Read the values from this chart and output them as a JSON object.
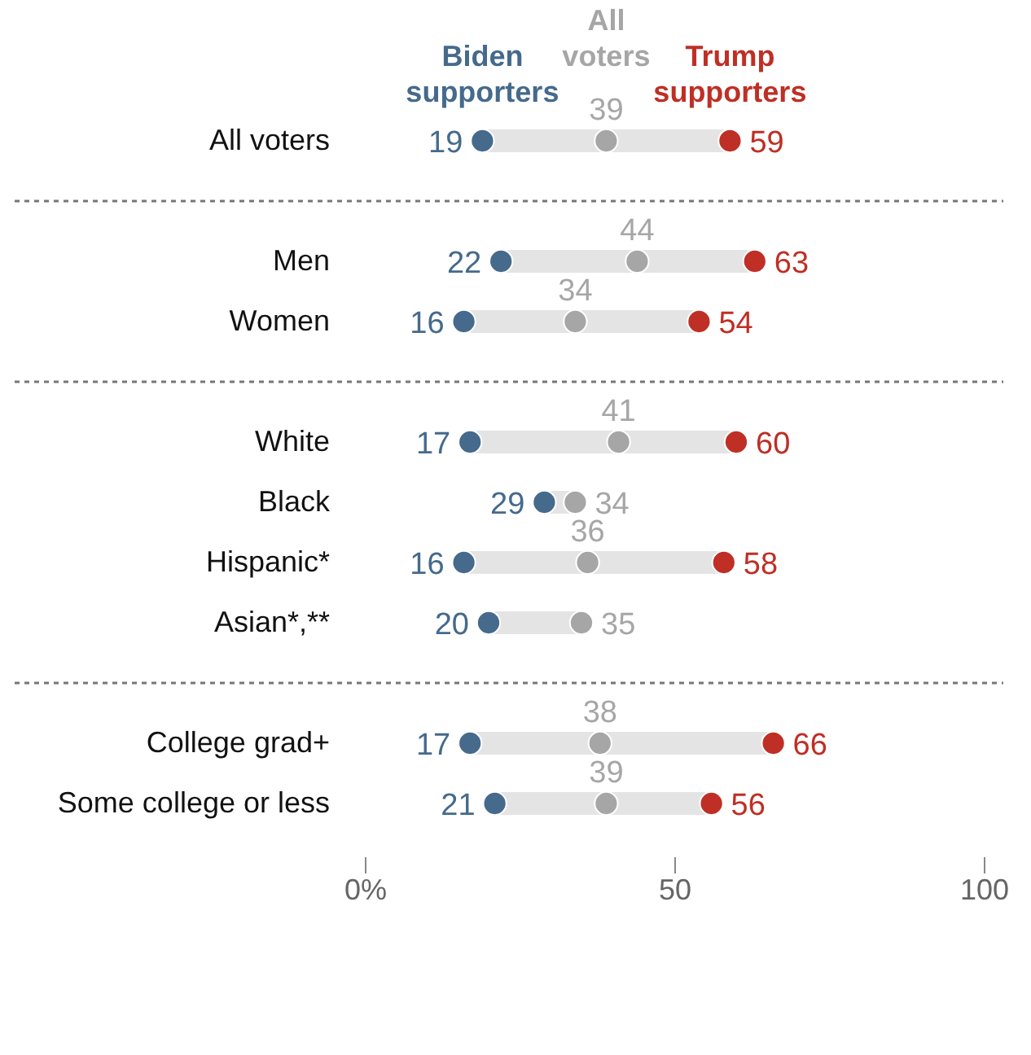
{
  "chart_data": {
    "type": "scatter",
    "categories": [
      "All voters",
      null,
      "Men",
      "Women",
      null,
      "White",
      "Black",
      "Hispanic*",
      "Asian*,**",
      null,
      "College grad+",
      "Some college or less"
    ],
    "series": [
      {
        "name": "Biden supporters",
        "color": "#456a8c",
        "values": [
          19,
          null,
          22,
          16,
          null,
          17,
          29,
          16,
          20,
          null,
          17,
          21
        ]
      },
      {
        "name": "All voters",
        "color": "#a6a6a6",
        "values": [
          39,
          null,
          44,
          34,
          null,
          41,
          34,
          36,
          35,
          null,
          38,
          39
        ]
      },
      {
        "name": "Trump supporters",
        "color": "#bf2f25",
        "values": [
          59,
          null,
          63,
          54,
          null,
          60,
          null,
          58,
          null,
          null,
          66,
          56
        ]
      }
    ],
    "xlim": [
      0,
      100
    ],
    "xticks": [
      {
        "value": 0,
        "label": "0%"
      },
      50,
      100
    ],
    "orientation": "horizontal",
    "data_labels": true,
    "legend": "top",
    "marker": "circle",
    "grid": false
  }
}
